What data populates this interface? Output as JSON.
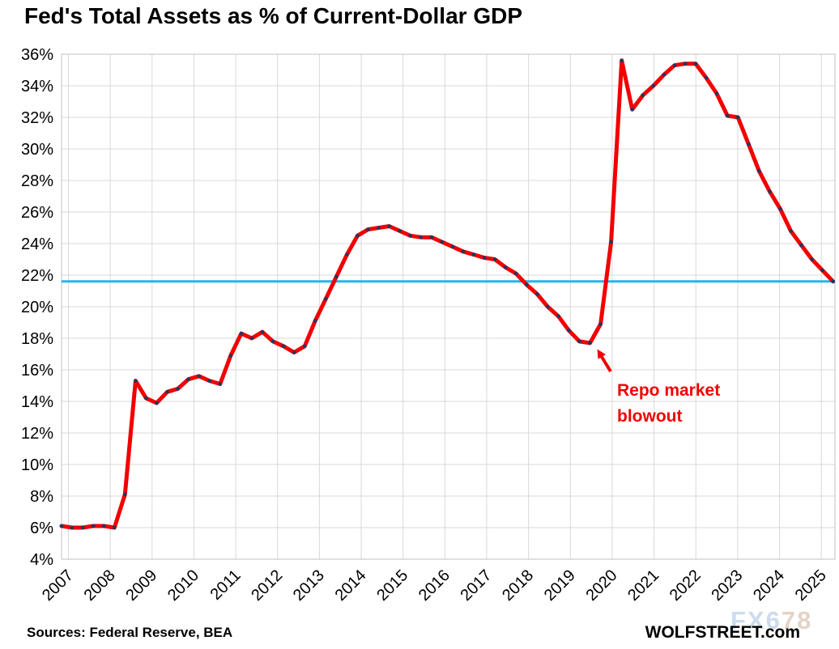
{
  "title": "Fed's Total Assets as % of Current-Dollar GDP",
  "footer": {
    "sources": "Sources: Federal Reserve, BEA",
    "brand": "WOLFSTREET.com"
  },
  "watermark": {
    "part1": "FX6",
    "part2": "78"
  },
  "annotation": {
    "line1": "Repo market",
    "line2": "blowout"
  },
  "colors": {
    "line": "#f20000",
    "marker": "#1f3864",
    "reference": "#27b4ea",
    "grid": "#d8d8d8",
    "border": "#c2c2c2",
    "annotation": "#f20000",
    "watermark1": "#c8d8ec",
    "watermark2": "#e2cfc2",
    "text": "#000000"
  },
  "chart_data": {
    "type": "line",
    "title": "Fed's Total Assets as % of Current-Dollar GDP",
    "xlabel": "",
    "ylabel": "",
    "ylim": [
      4,
      36
    ],
    "y_tick_step": 2,
    "y_tick_labels": [
      "4%",
      "6%",
      "8%",
      "10%",
      "12%",
      "14%",
      "16%",
      "18%",
      "20%",
      "22%",
      "24%",
      "26%",
      "28%",
      "30%",
      "32%",
      "34%",
      "36%"
    ],
    "x_tick_labels": [
      "2007",
      "2008",
      "2009",
      "2010",
      "2011",
      "2012",
      "2013",
      "2014",
      "2015",
      "2016",
      "2017",
      "2018",
      "2019",
      "2020",
      "2021",
      "2022",
      "2023",
      "2024",
      "2025"
    ],
    "grid": true,
    "legend": "none",
    "reference_line": {
      "value": 21.6,
      "meaning": "current level"
    },
    "annotations": [
      {
        "text": "Repo market blowout",
        "target_quarter": "2019 Q4",
        "target_value": 18.9
      }
    ],
    "series": [
      {
        "name": "Fed total assets as % of current-dollar GDP",
        "frequency": "quarterly",
        "x": [
          "2007 Q1",
          "2007 Q2",
          "2007 Q3",
          "2007 Q4",
          "2008 Q1",
          "2008 Q2",
          "2008 Q3",
          "2008 Q4",
          "2009 Q1",
          "2009 Q2",
          "2009 Q3",
          "2009 Q4",
          "2010 Q1",
          "2010 Q2",
          "2010 Q3",
          "2010 Q4",
          "2011 Q1",
          "2011 Q2",
          "2011 Q3",
          "2011 Q4",
          "2012 Q1",
          "2012 Q2",
          "2012 Q3",
          "2012 Q4",
          "2013 Q1",
          "2013 Q2",
          "2013 Q3",
          "2013 Q4",
          "2014 Q1",
          "2014 Q2",
          "2014 Q3",
          "2014 Q4",
          "2015 Q1",
          "2015 Q2",
          "2015 Q3",
          "2015 Q4",
          "2016 Q1",
          "2016 Q2",
          "2016 Q3",
          "2016 Q4",
          "2017 Q1",
          "2017 Q2",
          "2017 Q3",
          "2017 Q4",
          "2018 Q1",
          "2018 Q2",
          "2018 Q3",
          "2018 Q4",
          "2019 Q1",
          "2019 Q2",
          "2019 Q3",
          "2019 Q4",
          "2020 Q1",
          "2020 Q2",
          "2020 Q3",
          "2020 Q4",
          "2021 Q1",
          "2021 Q2",
          "2021 Q3",
          "2021 Q4",
          "2022 Q1",
          "2022 Q2",
          "2022 Q3",
          "2022 Q4",
          "2023 Q1",
          "2023 Q2",
          "2023 Q3",
          "2023 Q4",
          "2024 Q1",
          "2024 Q2",
          "2024 Q3",
          "2024 Q4",
          "2025 Q1",
          "2025 Q2"
        ],
        "values": [
          6.1,
          6.0,
          6.0,
          6.1,
          6.1,
          6.0,
          8.1,
          15.3,
          14.2,
          13.9,
          14.6,
          14.8,
          15.4,
          15.6,
          15.3,
          15.1,
          16.9,
          18.3,
          18.0,
          18.4,
          17.8,
          17.5,
          17.1,
          17.5,
          19.1,
          20.5,
          21.9,
          23.3,
          24.5,
          24.9,
          25.0,
          25.1,
          24.8,
          24.5,
          24.4,
          24.4,
          24.1,
          23.8,
          23.5,
          23.3,
          23.1,
          23.0,
          22.5,
          22.1,
          21.4,
          20.8,
          20.0,
          19.4,
          18.5,
          17.8,
          17.7,
          18.9,
          24.1,
          35.6,
          32.5,
          33.4,
          34.0,
          34.7,
          35.3,
          35.4,
          35.4,
          34.5,
          33.5,
          32.1,
          32.0,
          30.3,
          28.6,
          27.3,
          26.2,
          24.8,
          23.9,
          23.0,
          22.3,
          21.6
        ]
      }
    ]
  }
}
